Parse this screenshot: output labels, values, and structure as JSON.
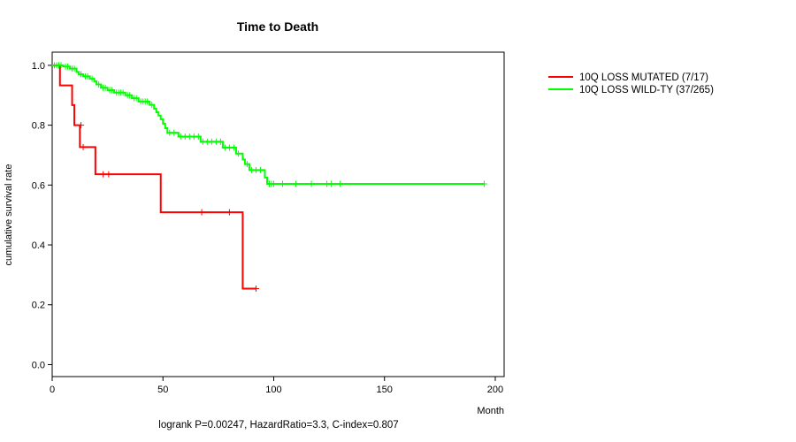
{
  "chart_data": {
    "type": "line",
    "subtype": "kaplan-meier",
    "title": "Time to Death",
    "xlabel": "Month",
    "ylabel": "cumulative survival rate",
    "xlim": [
      0,
      204
    ],
    "ylim": [
      -0.04,
      1.044
    ],
    "xticks": [
      0,
      50,
      100,
      150,
      200
    ],
    "yticks": [
      0.0,
      0.2,
      0.4,
      0.6,
      0.8,
      1.0
    ],
    "ytick_labels": [
      "0.0",
      "0.2",
      "0.4",
      "0.6",
      "0.8",
      "1.0"
    ],
    "footer": "logrank P=0.00247, HazardRatio=3.3, C-index=0.807",
    "legend_position": "top-right, outside plot",
    "series": [
      {
        "name": "10Q LOSS MUTATED (7/17)",
        "color": "#ff0000",
        "steps": [
          [
            0,
            1.0
          ],
          [
            3.5,
            0.933
          ],
          [
            9,
            0.867
          ],
          [
            10,
            0.8
          ],
          [
            12.5,
            0.727
          ],
          [
            19.5,
            0.636
          ],
          [
            49,
            0.509
          ],
          [
            86,
            0.254
          ],
          [
            92,
            0.254
          ]
        ],
        "censors": [
          [
            13,
            0.8
          ],
          [
            14,
            0.727
          ],
          [
            23,
            0.636
          ],
          [
            25.5,
            0.636
          ],
          [
            67.5,
            0.509
          ],
          [
            80,
            0.509
          ],
          [
            92,
            0.254
          ]
        ]
      },
      {
        "name": "10Q LOSS WILD-TY (37/265)",
        "color": "#00ff00",
        "steps": [
          [
            0,
            1.0
          ],
          [
            5,
            0.996
          ],
          [
            8,
            0.989
          ],
          [
            11,
            0.978
          ],
          [
            12,
            0.97
          ],
          [
            14,
            0.963
          ],
          [
            17,
            0.955
          ],
          [
            19,
            0.947
          ],
          [
            20,
            0.936
          ],
          [
            22,
            0.925
          ],
          [
            25,
            0.917
          ],
          [
            28,
            0.909
          ],
          [
            33,
            0.9
          ],
          [
            36,
            0.89
          ],
          [
            39,
            0.879
          ],
          [
            44,
            0.868
          ],
          [
            46,
            0.855
          ],
          [
            47,
            0.843
          ],
          [
            48,
            0.832
          ],
          [
            49,
            0.82
          ],
          [
            50,
            0.805
          ],
          [
            51,
            0.79
          ],
          [
            52,
            0.775
          ],
          [
            57,
            0.762
          ],
          [
            67,
            0.745
          ],
          [
            77,
            0.725
          ],
          [
            83,
            0.705
          ],
          [
            86,
            0.685
          ],
          [
            87,
            0.67
          ],
          [
            89,
            0.65
          ],
          [
            96,
            0.625
          ],
          [
            97,
            0.604
          ],
          [
            195,
            0.604
          ]
        ],
        "censors": [
          [
            1,
            1.0
          ],
          [
            2,
            1.0
          ],
          [
            3,
            1.0
          ],
          [
            4,
            1.0
          ],
          [
            6,
            0.996
          ],
          [
            7,
            0.996
          ],
          [
            9,
            0.989
          ],
          [
            10,
            0.989
          ],
          [
            13,
            0.97
          ],
          [
            15,
            0.963
          ],
          [
            16,
            0.963
          ],
          [
            18,
            0.955
          ],
          [
            21,
            0.936
          ],
          [
            23,
            0.925
          ],
          [
            24,
            0.925
          ],
          [
            26,
            0.917
          ],
          [
            27,
            0.917
          ],
          [
            29,
            0.909
          ],
          [
            30,
            0.909
          ],
          [
            31,
            0.909
          ],
          [
            32,
            0.909
          ],
          [
            34,
            0.9
          ],
          [
            35,
            0.9
          ],
          [
            37,
            0.89
          ],
          [
            38,
            0.89
          ],
          [
            40,
            0.879
          ],
          [
            41,
            0.879
          ],
          [
            42,
            0.879
          ],
          [
            43,
            0.879
          ],
          [
            45,
            0.868
          ],
          [
            53,
            0.775
          ],
          [
            55,
            0.775
          ],
          [
            58,
            0.762
          ],
          [
            60,
            0.762
          ],
          [
            62,
            0.762
          ],
          [
            64,
            0.762
          ],
          [
            66,
            0.762
          ],
          [
            68,
            0.745
          ],
          [
            70,
            0.745
          ],
          [
            72,
            0.745
          ],
          [
            74,
            0.745
          ],
          [
            76,
            0.745
          ],
          [
            78,
            0.725
          ],
          [
            80,
            0.725
          ],
          [
            82,
            0.725
          ],
          [
            84,
            0.705
          ],
          [
            88,
            0.67
          ],
          [
            90,
            0.65
          ],
          [
            92,
            0.65
          ],
          [
            94,
            0.65
          ],
          [
            98,
            0.604
          ],
          [
            99,
            0.604
          ],
          [
            100,
            0.604
          ],
          [
            104,
            0.604
          ],
          [
            110,
            0.604
          ],
          [
            117,
            0.604
          ],
          [
            124,
            0.604
          ],
          [
            126,
            0.604
          ],
          [
            130,
            0.604
          ],
          [
            195,
            0.604
          ]
        ]
      }
    ]
  }
}
